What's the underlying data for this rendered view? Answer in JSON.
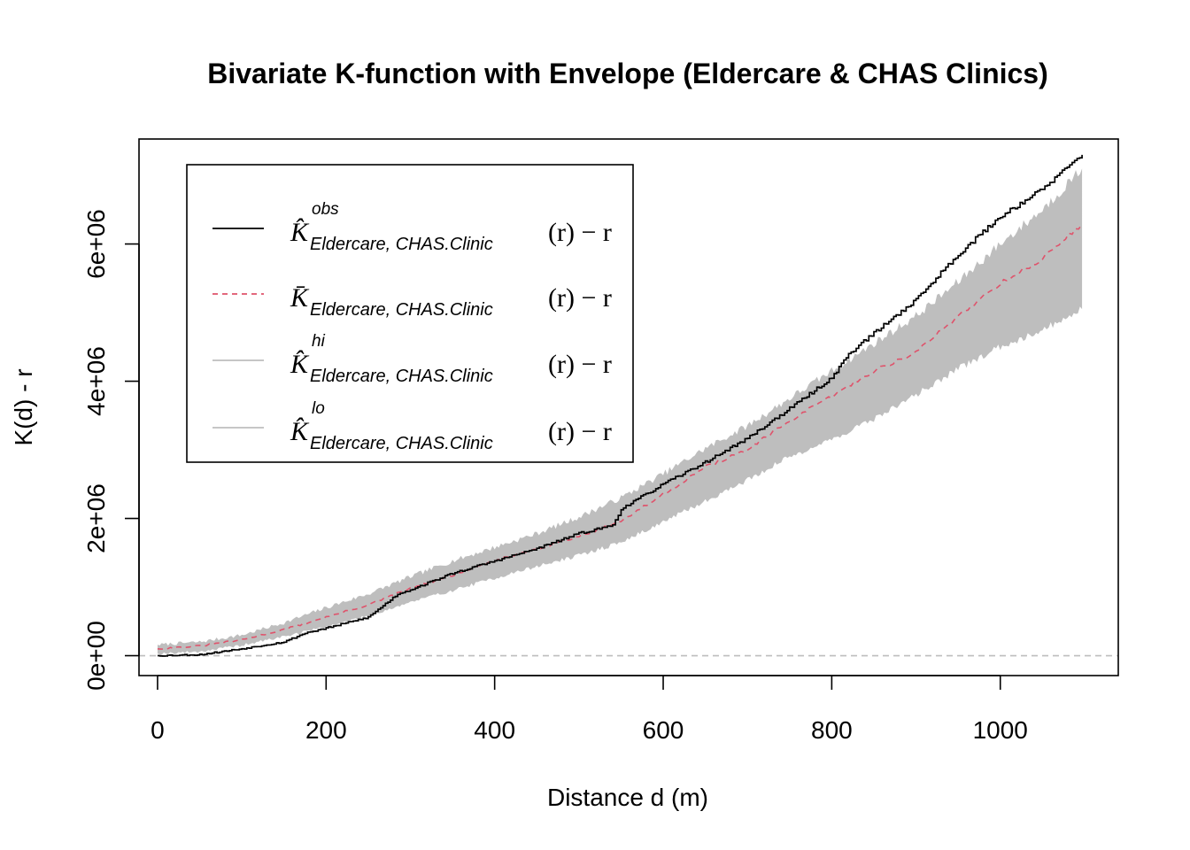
{
  "chart_data": {
    "type": "line",
    "title": "Bivariate K-function with Envelope (Eldercare & CHAS Clinics)",
    "xlabel": "Distance d (m)",
    "ylabel": "K(d) - r",
    "xlim": [
      -22,
      1140
    ],
    "ylim": [
      -290000,
      7530000
    ],
    "x_ticks": [
      0,
      200,
      400,
      600,
      800,
      1000
    ],
    "x_tick_labels": [
      "0",
      "200",
      "400",
      "600",
      "800",
      "1000"
    ],
    "y_ticks": [
      0,
      2000000,
      4000000,
      6000000
    ],
    "y_tick_labels": [
      "0e+00",
      "2e+06",
      "4e+06",
      "6e+06"
    ],
    "grid": false,
    "legend_position": "top-left",
    "reference_line": {
      "y": 0,
      "color": "#bebebe",
      "style": "dashed"
    },
    "series": [
      {
        "key": "obs",
        "color": "#000000",
        "style": "solid",
        "legend": {
          "base": "K̂",
          "sup": "obs",
          "sub": "Eldercare, CHAS.Clinic",
          "fn": "(r) − r"
        },
        "x": [
          0,
          50,
          100,
          150,
          175,
          200,
          250,
          285,
          300,
          350,
          400,
          450,
          500,
          540,
          550,
          600,
          650,
          700,
          750,
          800,
          820,
          850,
          900,
          950,
          1000,
          1050,
          1097
        ],
        "y": [
          0,
          15000,
          100000,
          200000,
          330000,
          400000,
          560000,
          900000,
          960000,
          1200000,
          1380000,
          1560000,
          1780000,
          1900000,
          2140000,
          2500000,
          2820000,
          3170000,
          3600000,
          4050000,
          4400000,
          4700000,
          5190000,
          5850000,
          6400000,
          6800000,
          7300000
        ]
      },
      {
        "key": "mmean",
        "color": "#df536b",
        "style": "dashed",
        "legend": {
          "base": "K̄",
          "sup": "",
          "sub": "Eldercare, CHAS.Clinic",
          "fn": "(r) − r"
        },
        "x": [
          0,
          50,
          100,
          150,
          200,
          250,
          300,
          350,
          400,
          450,
          500,
          550,
          600,
          650,
          700,
          750,
          800,
          850,
          900,
          950,
          1000,
          1050,
          1097
        ],
        "y": [
          100000,
          140000,
          230000,
          380000,
          560000,
          740000,
          980000,
          1170000,
          1380000,
          1560000,
          1740000,
          1960000,
          2350000,
          2750000,
          3000000,
          3420000,
          3780000,
          4150000,
          4420000,
          4950000,
          5430000,
          5780000,
          6300000
        ]
      },
      {
        "key": "hi",
        "color": "#bebebe",
        "style": "band-upper",
        "legend": {
          "base": "K̂",
          "sup": "hi",
          "sub": "Eldercare, CHAS.Clinic",
          "fn": "(r) − r"
        },
        "x": [
          0,
          50,
          100,
          150,
          200,
          250,
          300,
          350,
          400,
          450,
          500,
          550,
          600,
          650,
          700,
          750,
          800,
          850,
          900,
          950,
          1000,
          1050,
          1097
        ],
        "y": [
          160000,
          200000,
          300000,
          480000,
          700000,
          900000,
          1150000,
          1380000,
          1580000,
          1780000,
          2020000,
          2300000,
          2650000,
          3020000,
          3350000,
          3750000,
          4150000,
          4550000,
          4950000,
          5450000,
          6000000,
          6500000,
          7100000
        ]
      },
      {
        "key": "lo",
        "color": "#bebebe",
        "style": "band-lower",
        "legend": {
          "base": "K̂",
          "sup": "lo",
          "sub": "Eldercare, CHAS.Clinic",
          "fn": "(r) − r"
        },
        "x": [
          0,
          50,
          100,
          150,
          200,
          250,
          300,
          350,
          400,
          450,
          500,
          550,
          600,
          650,
          700,
          750,
          800,
          850,
          900,
          950,
          1000,
          1050,
          1097
        ],
        "y": [
          30000,
          60000,
          150000,
          280000,
          420000,
          580000,
          780000,
          950000,
          1130000,
          1300000,
          1460000,
          1650000,
          1950000,
          2250000,
          2560000,
          2900000,
          3150000,
          3450000,
          3800000,
          4180000,
          4500000,
          4750000,
          5050000
        ]
      }
    ]
  }
}
